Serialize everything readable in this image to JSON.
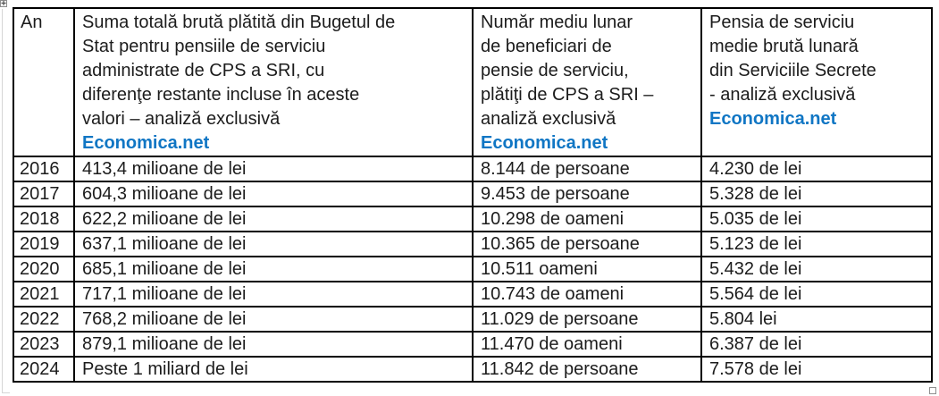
{
  "colors": {
    "brand_blue": "#1076c4",
    "text": "#1c1c1c",
    "table_border": "#000000",
    "handle_border": "#8f8f8f",
    "boundary_line": "#d6d6d6"
  },
  "handles": {
    "move_glyph": "+"
  },
  "table": {
    "header": {
      "col_year": "An",
      "col_amount": "Suma totală brută plătită din Bugetul de\nStat pentru pensiile de serviciu\nadministrate de CPS a SRI, cu\ndiferenţe restante incluse în aceste\nvalori – analiză exclusivă",
      "col_amount_brand": "Economica.net",
      "col_beneficiaries": "Număr mediu lunar\nde beneficiari de\npensie de serviciu,\nplătiţi de CPS a SRI –\nanaliză exclusivă",
      "col_beneficiaries_brand": "Economica.net",
      "col_pension": "Pensia de serviciu\nmedie brută lunară\ndin Serviciile Secrete\n- analiză exclusivă",
      "col_pension_brand": "Economica.net"
    },
    "rows": [
      {
        "year": "2016",
        "amount": "413,4 milioane de lei",
        "beneficiaries": "8.144 de persoane",
        "pension": "4.230 de lei"
      },
      {
        "year": "2017",
        "amount": "604,3 milioane de lei",
        "beneficiaries": "9.453 de persoane",
        "pension": "5.328 de lei"
      },
      {
        "year": "2018",
        "amount": "622,2 milioane de lei",
        "beneficiaries": "10.298 de oameni",
        "pension": "5.035 de lei"
      },
      {
        "year": "2019",
        "amount": "637,1 milioane de lei",
        "beneficiaries": "10.365 de persoane",
        "pension": "5.123 de lei"
      },
      {
        "year": "2020",
        "amount": "685,1 milioane de lei",
        "beneficiaries": "10.511 oameni",
        "pension": "5.432 de lei"
      },
      {
        "year": "2021",
        "amount": "717,1 milioane de lei",
        "beneficiaries": "10.743 de oameni",
        "pension": "5.564 de lei"
      },
      {
        "year": "2022",
        "amount": "768,2 milioane de lei",
        "beneficiaries": "11.029 de persoane",
        "pension": "5.804 lei"
      },
      {
        "year": "2023",
        "amount": "879,1 milioane de lei",
        "beneficiaries": "11.470 de oameni",
        "pension": "6.387 de lei"
      },
      {
        "year": "2024",
        "amount": "Peste 1 miliard de lei",
        "beneficiaries": "11.842 de persoane",
        "pension": "7.578 de lei"
      }
    ]
  }
}
